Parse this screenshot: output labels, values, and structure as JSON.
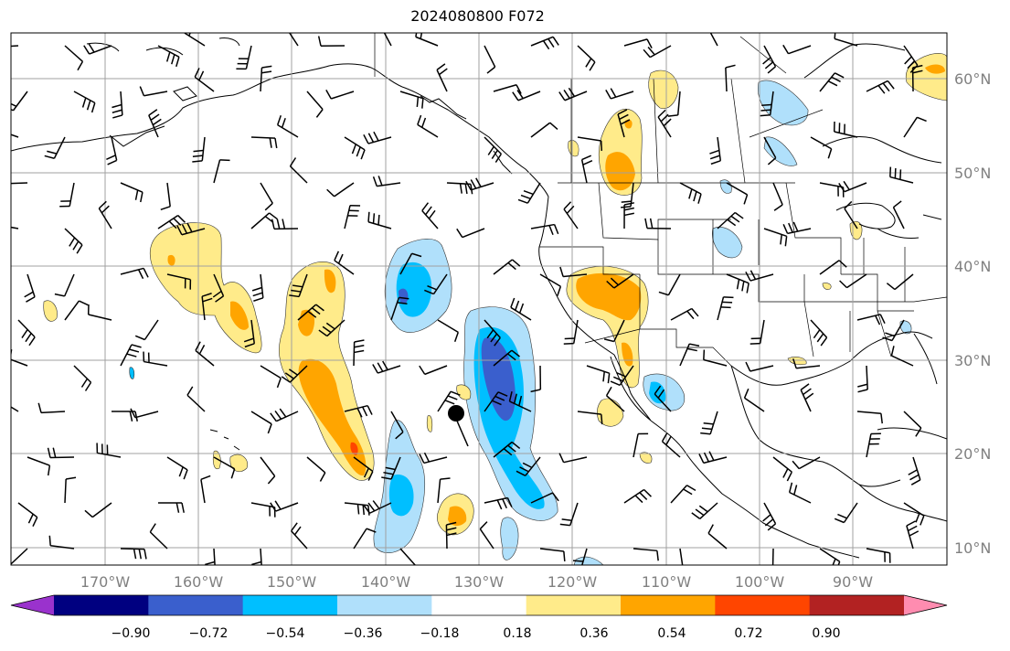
{
  "title": "2024080800 F072",
  "axes": {
    "lon_labels": [
      "170°W",
      "160°W",
      "150°W",
      "140°W",
      "130°W",
      "120°W",
      "110°W",
      "100°W",
      "90°W"
    ],
    "lat_labels": [
      "60°N",
      "50°N",
      "40°N",
      "30°N",
      "20°N",
      "10°N"
    ]
  },
  "colorbar": {
    "tick_labels": [
      "−0.90",
      "−0.72",
      "−0.54",
      "−0.36",
      "−0.18",
      "0.18",
      "0.36",
      "0.54",
      "0.72",
      "0.90"
    ],
    "colors": [
      "#9a32cd",
      "#000080",
      "#3a5fcd",
      "#00bfff",
      "#b0e0fb",
      "#ffffff",
      "#ffeb8a",
      "#ffa500",
      "#ff4500",
      "#b22222",
      "#ff8cb0"
    ]
  },
  "map": {
    "land_color": "#ffffff",
    "grid_color": "#a0a0a0",
    "storm_marker": "black-dot"
  }
}
